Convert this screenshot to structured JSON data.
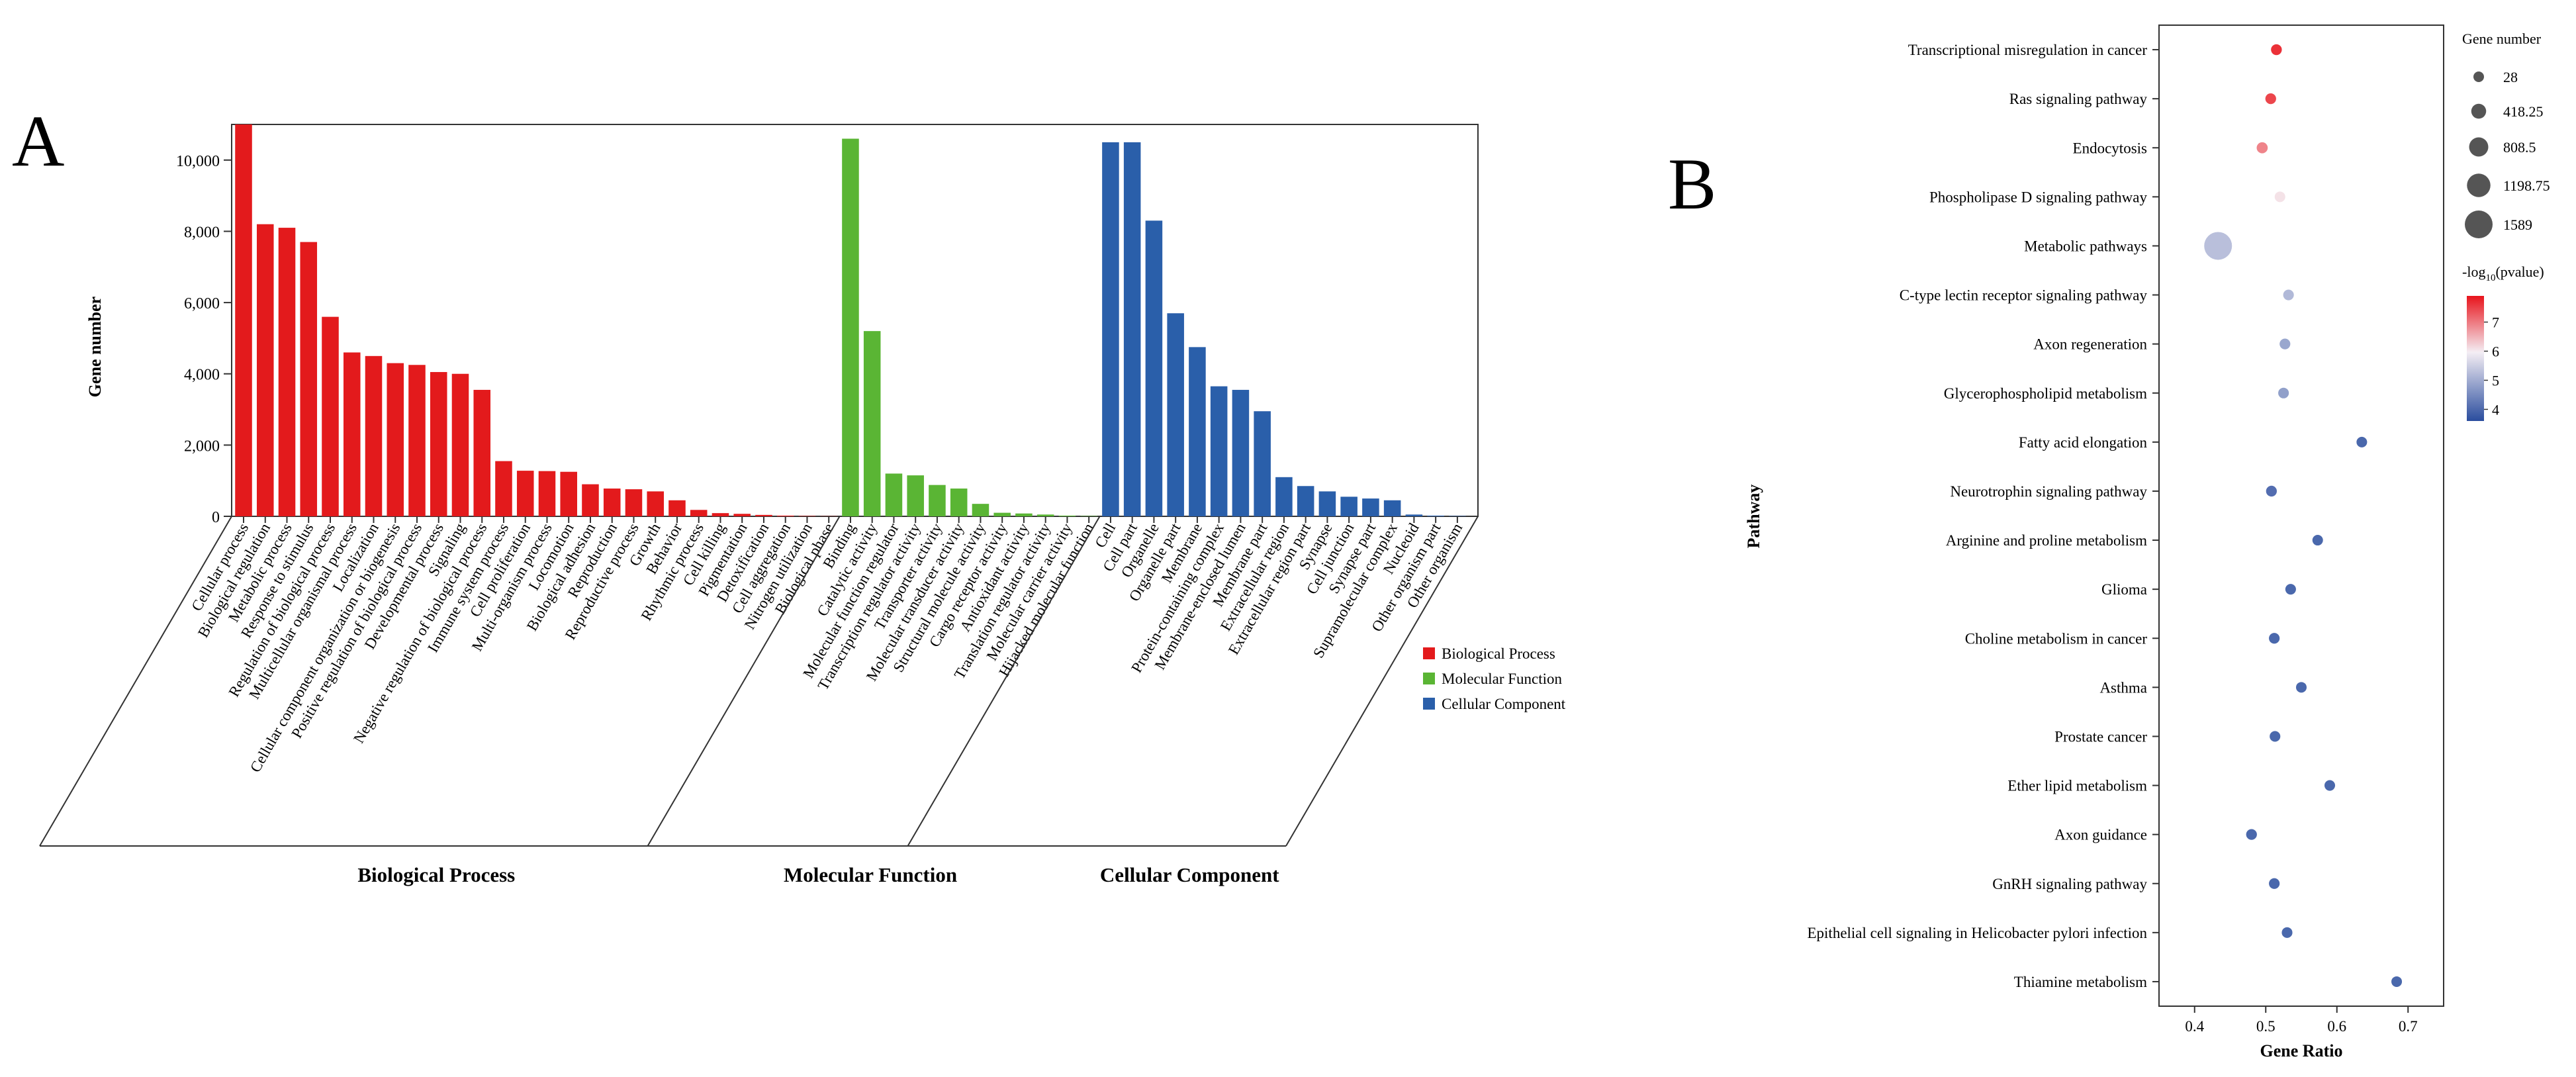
{
  "panels": {
    "a": "A",
    "b": "B"
  },
  "chart_data": [
    {
      "type": "bar",
      "ylabel": "Gene number",
      "ylim": [
        0,
        11000
      ],
      "yticks": [
        0,
        2000,
        4000,
        6000,
        8000,
        10000
      ],
      "ytick_labels": [
        "0",
        "2,000",
        "4,000",
        "6,000",
        "8,000",
        "10,000"
      ],
      "grid": false,
      "legend_position": "right",
      "groups": [
        {
          "name": "Biological Process",
          "color": "#e31a1c",
          "categories": [
            "Cellular process",
            "Biological regulation",
            "Metabolic process",
            "Response to stimulus",
            "Regulation of biological process",
            "Multicellular organismal process",
            "Localization",
            "Cellular component organization or biogenesis",
            "Positive regulation of biological process",
            "Developmental process",
            "Signaling",
            "Negative regulation of biological process",
            "Immune system process",
            "Cell proliferation",
            "Multi-organism process",
            "Locomotion",
            "Biological adhesion",
            "Reproduction",
            "Reproductive process",
            "Growth",
            "Behavior",
            "Rhythmic process",
            "Cell killing",
            "Pigmentation",
            "Detoxification",
            "Cell aggregation",
            "Nitrogen utilization",
            "Biological phase"
          ],
          "values": [
            11000,
            8200,
            8100,
            7700,
            5600,
            4600,
            4500,
            4300,
            4250,
            4050,
            4000,
            3550,
            1550,
            1280,
            1270,
            1250,
            900,
            780,
            760,
            700,
            450,
            180,
            90,
            70,
            40,
            20,
            10,
            5
          ]
        },
        {
          "name": "Molecular Function",
          "color": "#5ab534",
          "categories": [
            "Binding",
            "Catalytic activity",
            "Molecular function regulator",
            "Transcription regulator activity",
            "Transporter activity",
            "Molecular transducer activity",
            "Structural molecule activity",
            "Cargo receptor activity",
            "Antioxidant activity",
            "Translation regulator activity",
            "Molecular carrier activity",
            "Hijacked molecular function"
          ],
          "values": [
            10600,
            5200,
            1200,
            1150,
            880,
            780,
            350,
            100,
            80,
            50,
            20,
            10
          ]
        },
        {
          "name": "Cellular Component",
          "color": "#2a5faa",
          "categories": [
            "Cell",
            "Cell part",
            "Organelle",
            "Organelle part",
            "Membrane",
            "Protein-containing complex",
            "Membrane-enclosed lumen",
            "Membrane part",
            "Extracellular region",
            "Extracellular region part",
            "Synapse",
            "Cell junction",
            "Synapse part",
            "Supramolecular complex",
            "Nucleoid",
            "Other organism part",
            "Other organism"
          ],
          "values": [
            10500,
            10500,
            8300,
            5700,
            4750,
            3650,
            3550,
            2950,
            1100,
            850,
            700,
            550,
            500,
            450,
            50,
            20,
            10
          ]
        }
      ],
      "legend": [
        "Biological Process",
        "Molecular Function",
        "Cellular Component"
      ]
    },
    {
      "type": "scatter",
      "xlabel": "Gene Ratio",
      "ylabel": "Pathway",
      "xlim": [
        0.35,
        0.75
      ],
      "xticks": [
        0.4,
        0.5,
        0.6,
        0.7
      ],
      "xtick_labels": [
        "0.4",
        "0.5",
        "0.6",
        "0.7"
      ],
      "grid": false,
      "pathways": [
        "Transcriptional misregulation in cancer",
        "Ras signaling pathway",
        "Endocytosis",
        "Phospholipase D signaling pathway",
        "Metabolic pathways",
        "C-type lectin receptor signaling pathway",
        "Axon regeneration",
        "Glycerophospholipid metabolism",
        "Fatty acid elongation",
        "Neurotrophin signaling pathway",
        "Arginine and proline metabolism",
        "Glioma",
        "Choline metabolism in cancer",
        "Asthma",
        "Prostate cancer",
        "Ether lipid metabolism",
        "Axon guidance",
        "GnRH signaling pathway",
        "Epithelial cell signaling in Helicobacter pylori infection",
        "Thiamine metabolism"
      ],
      "gene_ratio": [
        0.515,
        0.507,
        0.495,
        0.52,
        0.433,
        0.532,
        0.527,
        0.525,
        0.635,
        0.508,
        0.573,
        0.535,
        0.512,
        0.55,
        0.513,
        0.59,
        0.48,
        0.512,
        0.53,
        0.684
      ],
      "neg_log10_pvalue": [
        7.8,
        7.6,
        7.0,
        6.1,
        5.2,
        5.1,
        4.8,
        4.7,
        3.8,
        3.9,
        3.8,
        3.8,
        3.8,
        3.8,
        3.8,
        3.8,
        3.8,
        3.8,
        3.8,
        3.8
      ],
      "gene_number": [
        50,
        45,
        70,
        30,
        1589,
        35,
        40,
        35,
        28,
        45,
        28,
        35,
        40,
        30,
        35,
        30,
        45,
        40,
        35,
        28
      ],
      "size_legend": {
        "title": "Gene number",
        "values": [
          28,
          418.25,
          808.5,
          1198.75,
          1589
        ],
        "labels": [
          "28",
          "418.25",
          "808.5",
          "1198.75",
          "1589"
        ]
      },
      "color_legend": {
        "title_prefix": "-log",
        "title_sub": "10",
        "title_suffix": "(pvalue)",
        "min": 3.6,
        "max": 7.9,
        "ticks": [
          4,
          5,
          6,
          7
        ],
        "tick_labels": [
          "4",
          "5",
          "6",
          "7"
        ],
        "low_color": "#2a4d9e",
        "mid_color": "#f4eef4",
        "high_color": "#e8141c"
      }
    }
  ]
}
